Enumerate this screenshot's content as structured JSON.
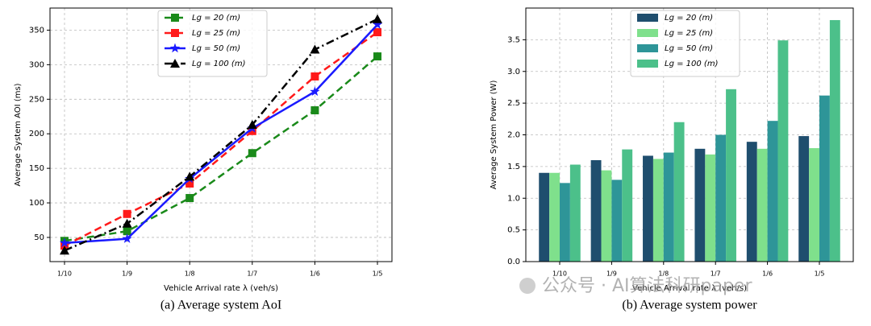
{
  "chart_data": [
    {
      "type": "line",
      "caption": "(a) Average system AoI",
      "xlabel": "Vehicle Arrival rate λ (veh/s)",
      "ylabel": "Average System AOI (ms)",
      "categories": [
        "1/10",
        "1/9",
        "1/8",
        "1/7",
        "1/6",
        "1/5"
      ],
      "series": [
        {
          "name": "Lg = 20 (m)",
          "color": "#1a8a1a",
          "marker": "square",
          "linestyle": "dashed",
          "values": [
            45,
            59,
            107,
            172,
            234,
            312
          ]
        },
        {
          "name": "Lg = 25 (m)",
          "color": "#ff1a1a",
          "marker": "square",
          "linestyle": "dashed",
          "values": [
            38,
            84,
            128,
            204,
            283,
            347
          ]
        },
        {
          "name": "Lg = 50 (m)",
          "color": "#1a1aff",
          "marker": "star",
          "linestyle": "solid",
          "values": [
            42,
            48,
            135,
            208,
            261,
            358
          ]
        },
        {
          "name": "Lg = 100 (m)",
          "color": "#000000",
          "marker": "triangle",
          "linestyle": "dashdot",
          "values": [
            31,
            70,
            138,
            213,
            322,
            366
          ]
        }
      ],
      "ylim": [
        15,
        382
      ],
      "yticks": [
        50,
        100,
        150,
        200,
        250,
        300,
        350
      ],
      "grid": true,
      "legend": "upper center"
    },
    {
      "type": "bar",
      "caption": "(b) Average system power",
      "xlabel": "Vehicle Arrival rate λ (veh/s)",
      "ylabel": "Average System Power (W)",
      "categories": [
        "1/10",
        "1/9",
        "1/8",
        "1/7",
        "1/6",
        "1/5"
      ],
      "series": [
        {
          "name": "Lg = 20 (m)",
          "color": "#1f4e6e",
          "values": [
            1.4,
            1.6,
            1.67,
            1.78,
            1.89,
            1.98
          ]
        },
        {
          "name": "Lg = 25 (m)",
          "color": "#7fe08c",
          "values": [
            1.4,
            1.44,
            1.62,
            1.69,
            1.78,
            1.79
          ]
        },
        {
          "name": "Lg = 50 (m)",
          "color": "#2e9598",
          "values": [
            1.24,
            1.29,
            1.72,
            2.0,
            2.22,
            2.62
          ]
        },
        {
          "name": "Lg = 100 (m)",
          "color": "#4cc08a",
          "values": [
            1.53,
            1.77,
            2.2,
            2.72,
            3.49,
            3.81
          ]
        }
      ],
      "ylim": [
        0,
        4.0
      ],
      "yticks": [
        {
          "value": 0,
          "label": "0.0"
        },
        0.5,
        {
          "value": 1,
          "label": "1.0"
        },
        1.5,
        {
          "value": 2,
          "label": "2.0"
        },
        2.5,
        {
          "value": 3,
          "label": "3.0"
        },
        3.5
      ],
      "grid": true,
      "legend": "upper center"
    }
  ],
  "watermark": "公众号 · AI算法科研paper"
}
